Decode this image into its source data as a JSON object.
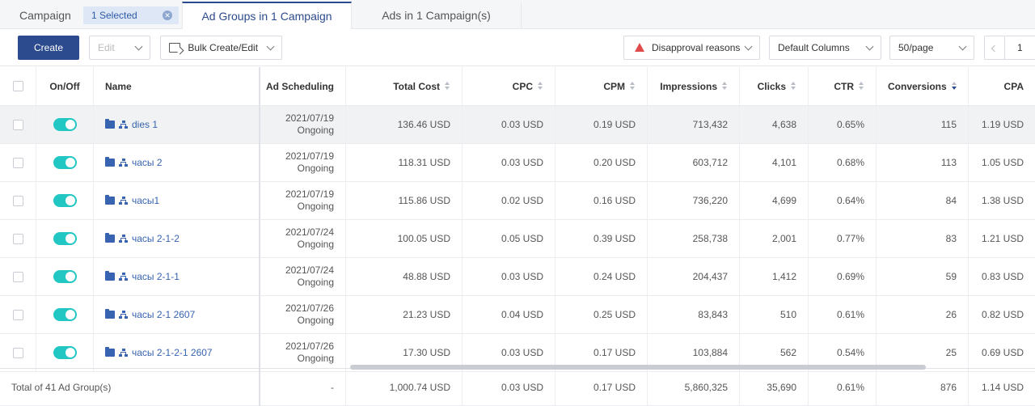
{
  "tabs": {
    "campaign": "Campaign",
    "selected_chip": "1 Selected",
    "ad_groups": "Ad Groups in 1 Campaign",
    "ads": "Ads in 1 Campaign(s)"
  },
  "toolbar": {
    "create": "Create",
    "edit": "Edit",
    "bulk": "Bulk Create/Edit",
    "disapproval": "Disapproval reasons",
    "columns": "Default Columns",
    "per_page": "50/page",
    "page_number": "1"
  },
  "colors": {
    "primary": "#2c4a8e",
    "toggle_on": "#22c7c3",
    "link": "#3763b0",
    "warning": "#e04a4a"
  },
  "headers": {
    "onoff": "On/Off",
    "name": "Name",
    "scheduling": "Ad Scheduling",
    "total_cost": "Total Cost",
    "cpc": "CPC",
    "cpm": "CPM",
    "impressions": "Impressions",
    "clicks": "Clicks",
    "ctr": "CTR",
    "conversions": "Conversions",
    "cpa": "CPA"
  },
  "rows": [
    {
      "name": "dies 1",
      "date": "2021/07/19",
      "status": "Ongoing",
      "cost": "136.46 USD",
      "cpc": "0.03 USD",
      "cpm": "0.19 USD",
      "impressions": "713,432",
      "clicks": "4,638",
      "ctr": "0.65%",
      "conversions": "115",
      "cpa": "1.19 USD"
    },
    {
      "name": "часы 2",
      "date": "2021/07/19",
      "status": "Ongoing",
      "cost": "118.31 USD",
      "cpc": "0.03 USD",
      "cpm": "0.20 USD",
      "impressions": "603,712",
      "clicks": "4,101",
      "ctr": "0.68%",
      "conversions": "113",
      "cpa": "1.05 USD"
    },
    {
      "name": "часы1",
      "date": "2021/07/19",
      "status": "Ongoing",
      "cost": "115.86 USD",
      "cpc": "0.02 USD",
      "cpm": "0.16 USD",
      "impressions": "736,220",
      "clicks": "4,699",
      "ctr": "0.64%",
      "conversions": "84",
      "cpa": "1.38 USD"
    },
    {
      "name": "часы 2-1-2",
      "date": "2021/07/24",
      "status": "Ongoing",
      "cost": "100.05 USD",
      "cpc": "0.05 USD",
      "cpm": "0.39 USD",
      "impressions": "258,738",
      "clicks": "2,001",
      "ctr": "0.77%",
      "conversions": "83",
      "cpa": "1.21 USD"
    },
    {
      "name": "часы 2-1-1",
      "date": "2021/07/24",
      "status": "Ongoing",
      "cost": "48.88 USD",
      "cpc": "0.03 USD",
      "cpm": "0.24 USD",
      "impressions": "204,437",
      "clicks": "1,412",
      "ctr": "0.69%",
      "conversions": "59",
      "cpa": "0.83 USD"
    },
    {
      "name": "часы 2-1 2607",
      "date": "2021/07/26",
      "status": "Ongoing",
      "cost": "21.23 USD",
      "cpc": "0.04 USD",
      "cpm": "0.25 USD",
      "impressions": "83,843",
      "clicks": "510",
      "ctr": "0.61%",
      "conversions": "26",
      "cpa": "0.82 USD"
    },
    {
      "name": "часы 2-1-2-1 2607",
      "date": "2021/07/26",
      "status": "Ongoing",
      "cost": "17.30 USD",
      "cpc": "0.03 USD",
      "cpm": "0.17 USD",
      "impressions": "103,884",
      "clicks": "562",
      "ctr": "0.54%",
      "conversions": "25",
      "cpa": "0.69 USD"
    }
  ],
  "total": {
    "label": "Total of 41 Ad Group(s)",
    "scheduling": "-",
    "cost": "1,000.74 USD",
    "cpc": "0.03 USD",
    "cpm": "0.17 USD",
    "impressions": "5,860,325",
    "clicks": "35,690",
    "ctr": "0.61%",
    "conversions": "876",
    "cpa": "1.14 USD"
  }
}
